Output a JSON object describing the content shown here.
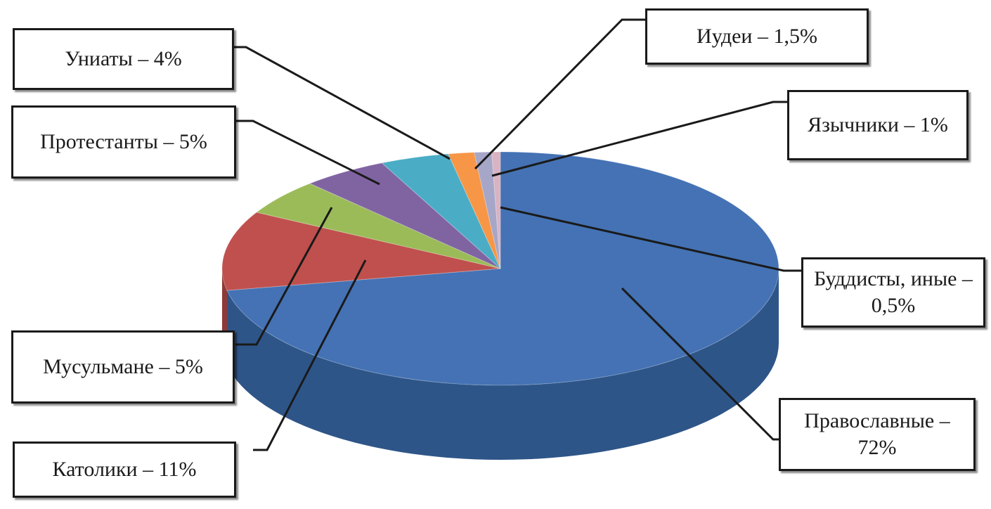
{
  "chart_data": {
    "type": "pie",
    "slices": [
      {
        "key": "orthodox",
        "label": "Православные – 72%",
        "value": 72,
        "color": "#4472B4",
        "side": "#2E5588"
      },
      {
        "key": "catholics",
        "label": "Католики – 11%",
        "value": 11,
        "color": "#C0504D",
        "side": "#8E3A38"
      },
      {
        "key": "muslims",
        "label": "Мусульмане – 5%",
        "value": 5,
        "color": "#9BBB59",
        "side": "#71893F"
      },
      {
        "key": "protestants",
        "label": "Протестанты – 5%",
        "value": 5,
        "color": "#8064A2",
        "side": "#5D4977"
      },
      {
        "key": "uniates",
        "label": "Униаты – 4%",
        "value": 4,
        "color": "#4BACC6",
        "side": "#357E92"
      },
      {
        "key": "jews",
        "label": "Иудеи – 1,5%",
        "value": 1.5,
        "color": "#F79646",
        "side": "#B86E33"
      },
      {
        "key": "pagans",
        "label": "Язычники – 1%",
        "value": 1,
        "color": "#A6A6C8",
        "side": "#7A7A96"
      },
      {
        "key": "buddhists",
        "label": "Буддисты, иные – 0,5%",
        "value": 0.5,
        "color": "#D9B3C2",
        "side": "#A08490"
      }
    ],
    "labels": {
      "orthodox": "Православные – 72%",
      "catholics": "Католики – 11%",
      "muslims": "Мусульмане – 5%",
      "protestants": "Протестанты – 5%",
      "uniates": "Униаты – 4%",
      "jews": "Иудеи – 1,5%",
      "pagans": "Язычники – 1%",
      "buddhists": "Буддисты, иные – 0,5%"
    },
    "legend": "none",
    "style": "3d"
  }
}
